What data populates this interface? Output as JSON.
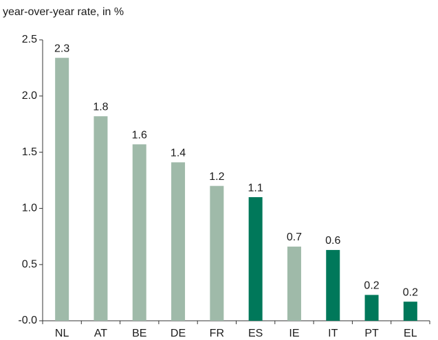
{
  "chart_data": {
    "type": "bar",
    "y_label": "year-over-year rate, in %",
    "categories": [
      "NL",
      "AT",
      "BE",
      "DE",
      "FR",
      "ES",
      "IE",
      "IT",
      "PT",
      "EL"
    ],
    "values": [
      2.34,
      1.82,
      1.57,
      1.41,
      1.2,
      1.1,
      0.66,
      0.63,
      0.23,
      0.17
    ],
    "value_labels": [
      "2.3",
      "1.8",
      "1.6",
      "1.4",
      "1.2",
      "1.1",
      "0.7",
      "0.6",
      "0.2",
      "0.2"
    ],
    "colors": [
      "#9fbaa9",
      "#9fbaa9",
      "#9fbaa9",
      "#9fbaa9",
      "#9fbaa9",
      "#00785a",
      "#9fbaa9",
      "#00785a",
      "#00785a",
      "#00785a"
    ],
    "ylim": [
      0,
      2.5
    ],
    "yticks": [
      {
        "value": 0,
        "label": "-0.0"
      },
      0.5,
      {
        "value": 1,
        "label": "1.0"
      },
      1.5,
      {
        "value": 2,
        "label": "2.0"
      },
      2.5
    ],
    "grid": false
  }
}
